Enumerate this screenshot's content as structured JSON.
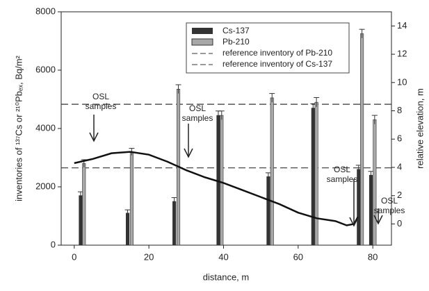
{
  "chart_data": {
    "type": "bar",
    "xlabel": "distance, m",
    "ylabel": "inventories of ¹³⁷Cs or ²¹⁰Pbₑₓ, Bq/m²",
    "y2label": "relative elevation, m",
    "xlim": [
      -3.5,
      85
    ],
    "xticks": [
      0,
      20,
      40,
      60,
      80
    ],
    "ylim": [
      0,
      8000
    ],
    "yticks": [
      0,
      2000,
      4000,
      6000,
      8000
    ],
    "y2lim": [
      -1.5,
      15
    ],
    "y2ticks": [
      0,
      2,
      4,
      6,
      8,
      10,
      12,
      14
    ],
    "series": [
      {
        "name": "Cs-137",
        "color": "#333333",
        "x": [
          1.7,
          14.3,
          26.8,
          38.6,
          52,
          64,
          76.2,
          79.5
        ],
        "values": [
          1700,
          1100,
          1500,
          4450,
          2350,
          4700,
          2600,
          2400
        ],
        "errors": [
          130,
          110,
          130,
          150,
          130,
          150,
          140,
          130
        ]
      },
      {
        "name": "Pb-210",
        "color": "#a8a8a8",
        "x": [
          2.6,
          15.4,
          27.9,
          39.5,
          53,
          64.9,
          77.1,
          80.5
        ],
        "values": [
          2800,
          3200,
          5350,
          4450,
          5050,
          4900,
          7250,
          4300
        ],
        "errors": [
          130,
          120,
          150,
          150,
          150,
          160,
          150,
          150
        ]
      }
    ],
    "reference_lines": [
      {
        "name": "reference inventory of Pb-210",
        "value": 4830,
        "color": "#333333"
      },
      {
        "name": "reference inventory of Cs-137",
        "value": 2650,
        "color": "#333333"
      }
    ],
    "elevation": {
      "axis": "y2",
      "color": "#111111",
      "x": [
        0,
        5,
        10,
        15,
        20,
        25,
        30,
        35,
        40,
        45,
        50,
        55,
        60,
        65,
        70,
        73,
        75,
        76
      ],
      "values": [
        4.3,
        4.6,
        5.0,
        5.1,
        4.9,
        4.4,
        3.8,
        3.3,
        2.9,
        2.4,
        1.9,
        1.4,
        0.8,
        0.4,
        0.2,
        -0.1,
        0.0,
        0.5
      ]
    },
    "annotations": [
      "OSL samples",
      "OSL samples",
      "OSL samples",
      "OSL samples"
    ]
  }
}
